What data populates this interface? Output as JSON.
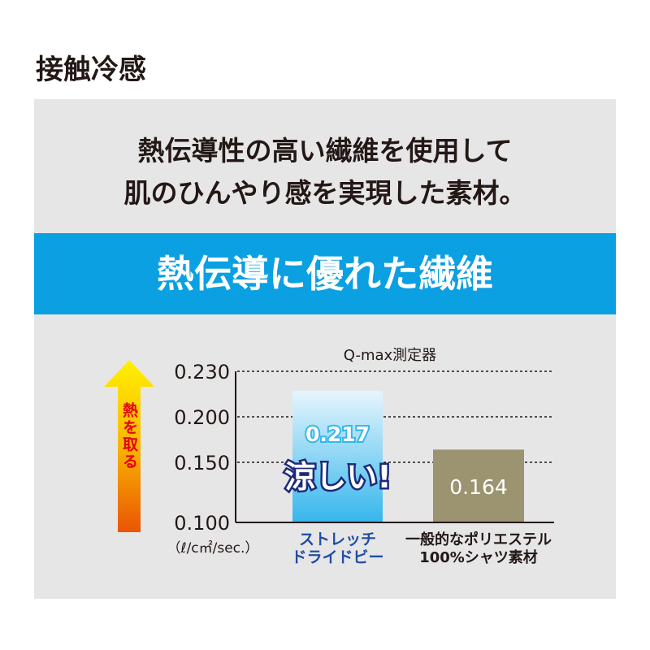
{
  "header": {
    "title": "接触冷感"
  },
  "lead": {
    "line1": "熱伝導性の高い繊維を使用して",
    "line2": "肌のひんやり感を実現した素材。"
  },
  "band": {
    "text": "熱伝導に優れた繊維",
    "color": "#0aa0e2"
  },
  "chart_data": {
    "type": "bar",
    "title": "Q-max測定器",
    "unit": "（ℓ/c㎡/sec.）",
    "arrow_label": "熱を取る",
    "ticks": [
      "0.230",
      "0.200",
      "0.150",
      "0.100"
    ],
    "tick_values": [
      0.23,
      0.2,
      0.15,
      0.1
    ],
    "ylim": [
      0.1,
      0.23
    ],
    "grid": "dotted",
    "categories": [
      [
        "ストレッチ",
        "ドライドビー"
      ],
      [
        "一般的なポリエステル",
        "100%シャツ素材"
      ]
    ],
    "values": [
      0.217,
      0.164
    ],
    "value_labels": [
      "0.217",
      "0.164"
    ],
    "bar_colors": [
      "#62c3ef",
      "#9c9470"
    ],
    "callout": "涼しい!"
  }
}
